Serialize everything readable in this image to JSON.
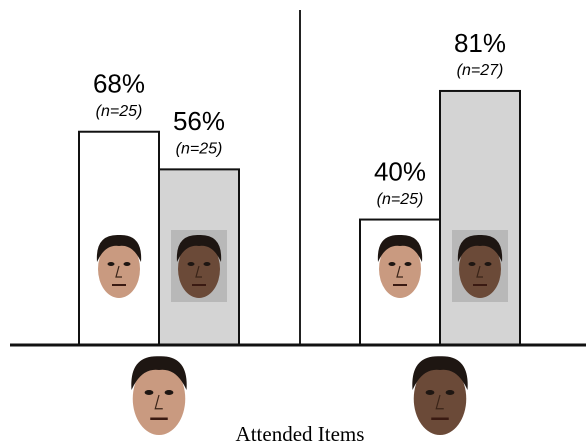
{
  "chart_data": {
    "type": "bar",
    "categories": [
      null,
      null
    ],
    "x_label": "Attended Items",
    "ylim": [
      0,
      110
    ],
    "series": [
      {
        "color": "#ffffff",
        "values": [
          68,
          40
        ],
        "value_labels": [
          "68%",
          "40%"
        ],
        "n_labels": [
          "(n=25)",
          "(n=25)"
        ]
      },
      {
        "color": "#d4d4d4",
        "values": [
          56,
          81
        ],
        "value_labels": [
          "56%",
          "81%"
        ],
        "n_labels": [
          "(n=25)",
          "(n=27)"
        ]
      }
    ]
  }
}
